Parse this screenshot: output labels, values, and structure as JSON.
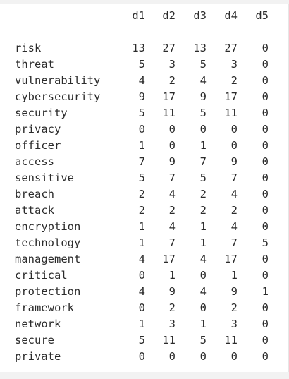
{
  "table": {
    "columns": [
      "d1",
      "d2",
      "d3",
      "d4",
      "d5"
    ],
    "rows": [
      {
        "term": "risk",
        "values": [
          "13",
          "27",
          "13",
          "27",
          "0"
        ]
      },
      {
        "term": "threat",
        "values": [
          "5",
          "3",
          "5",
          "3",
          "0"
        ]
      },
      {
        "term": "vulnerability",
        "values": [
          "4",
          "2",
          "4",
          "2",
          "0"
        ]
      },
      {
        "term": "cybersecurity",
        "values": [
          "9",
          "17",
          "9",
          "17",
          "0"
        ]
      },
      {
        "term": "security",
        "values": [
          "5",
          "11",
          "5",
          "11",
          "0"
        ]
      },
      {
        "term": "privacy",
        "values": [
          "0",
          "0",
          "0",
          "0",
          "0"
        ]
      },
      {
        "term": "officer",
        "values": [
          "1",
          "0",
          "1",
          "0",
          "0"
        ]
      },
      {
        "term": "access",
        "values": [
          "7",
          "9",
          "7",
          "9",
          "0"
        ]
      },
      {
        "term": "sensitive",
        "values": [
          "5",
          "7",
          "5",
          "7",
          "0"
        ]
      },
      {
        "term": "breach",
        "values": [
          "2",
          "4",
          "2",
          "4",
          "0"
        ]
      },
      {
        "term": "attack",
        "values": [
          "2",
          "2",
          "2",
          "2",
          "0"
        ]
      },
      {
        "term": "encryption",
        "values": [
          "1",
          "4",
          "1",
          "4",
          "0"
        ]
      },
      {
        "term": "technology",
        "values": [
          "1",
          "7",
          "1",
          "7",
          "5"
        ]
      },
      {
        "term": "management",
        "values": [
          "4",
          "17",
          "4",
          "17",
          "0"
        ]
      },
      {
        "term": "critical",
        "values": [
          "0",
          "1",
          "0",
          "1",
          "0"
        ]
      },
      {
        "term": "protection",
        "values": [
          "4",
          "9",
          "4",
          "9",
          "1"
        ]
      },
      {
        "term": "framework",
        "values": [
          "0",
          "2",
          "0",
          "2",
          "0"
        ]
      },
      {
        "term": "network",
        "values": [
          "1",
          "3",
          "1",
          "3",
          "0"
        ]
      },
      {
        "term": "secure",
        "values": [
          "5",
          "11",
          "5",
          "11",
          "0"
        ]
      },
      {
        "term": "private",
        "values": [
          "0",
          "0",
          "0",
          "0",
          "0"
        ]
      }
    ]
  }
}
